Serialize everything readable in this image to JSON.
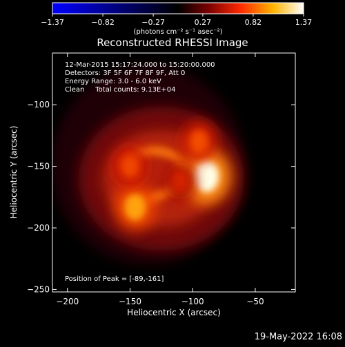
{
  "colorbar": {
    "ticks": [
      "-1.37",
      "-0.82",
      "-0.27",
      "0.27",
      "0.82",
      "1.37"
    ],
    "tick_values": [
      -1.37,
      -0.82,
      -0.27,
      0.27,
      0.82,
      1.37
    ],
    "range": [
      -1.37,
      1.37
    ],
    "unit_label": "(photons cm⁻² s⁻¹ asec⁻²)"
  },
  "plot": {
    "title": "Reconstructed RHESSI Image",
    "info": [
      "12-Mar-2015 15:17:24.000 to 15:20:00.000",
      "Detectors: 3F 5F 6F 7F 8F 9F, Att 0",
      "Energy Range: 3.0 - 6.0 keV",
      "Clean     Total counts: 9.13E+04"
    ],
    "peak_label": "Position of Peak = [-89,-161]",
    "footer_date": "19-May-2022 16:08"
  },
  "chart_data": {
    "type": "heatmap",
    "title": "Reconstructed RHESSI Image",
    "xlabel": "Heliocentric X (arcsec)",
    "ylabel": "Heliocentric Y (arcsec)",
    "xlim": [
      -212,
      -18
    ],
    "ylim": [
      -252,
      -58
    ],
    "x_ticks": [
      -200,
      -150,
      -100,
      -50
    ],
    "x_tick_labels": [
      "−200",
      "−150",
      "−100",
      "−50"
    ],
    "y_ticks": [
      -250,
      -200,
      -150,
      -100
    ],
    "y_tick_labels": [
      "−250",
      "−200",
      "−150",
      "−100"
    ],
    "colormap": "red-temperature",
    "value_range": [
      -1.37,
      1.37
    ],
    "peak": [
      -89,
      -161
    ],
    "sources": [
      {
        "x": -89,
        "y": -158,
        "peak": 1.37
      },
      {
        "x": -146,
        "y": -183,
        "peak": 1.02
      },
      {
        "x": -150,
        "y": -150,
        "peak": 0.72
      },
      {
        "x": -110,
        "y": -162,
        "peak": 0.55
      },
      {
        "x": -95,
        "y": -130,
        "peak": 0.75
      }
    ]
  }
}
